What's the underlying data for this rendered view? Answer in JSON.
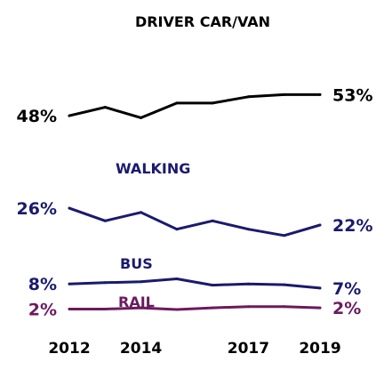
{
  "chart_data": {
    "type": "line",
    "x": [
      2012,
      2013,
      2014,
      2015,
      2016,
      2017,
      2018,
      2019
    ],
    "xtick_labels": [
      "2012",
      "2014",
      "2017",
      "2019"
    ],
    "xticks": [
      2012,
      2014,
      2017,
      2019
    ],
    "ylim": [
      0,
      60
    ],
    "grid": false,
    "legend": "none",
    "series": [
      {
        "name": "DRIVER CAR/VAN",
        "color": "#000000",
        "values": [
          48,
          50,
          47.5,
          51,
          51,
          52.5,
          53,
          53
        ],
        "start_label": "48%",
        "end_label": "53%"
      },
      {
        "name": "WALKING",
        "color": "#1a1a6e",
        "values": [
          26,
          23,
          25,
          21,
          23,
          21,
          19.5,
          22
        ],
        "start_label": "26%",
        "end_label": "22%"
      },
      {
        "name": "BUS",
        "color": "#1a1a6e",
        "values": [
          8,
          8.3,
          8.5,
          9.2,
          7.7,
          8,
          7.8,
          7
        ],
        "start_label": "8%",
        "end_label": "7%"
      },
      {
        "name": "RAIL",
        "color": "#6b1a5e",
        "values": [
          2,
          2,
          2.3,
          1.9,
          2.3,
          2.6,
          2.6,
          2.3
        ],
        "start_label": "2%",
        "end_label": "2%"
      }
    ]
  }
}
